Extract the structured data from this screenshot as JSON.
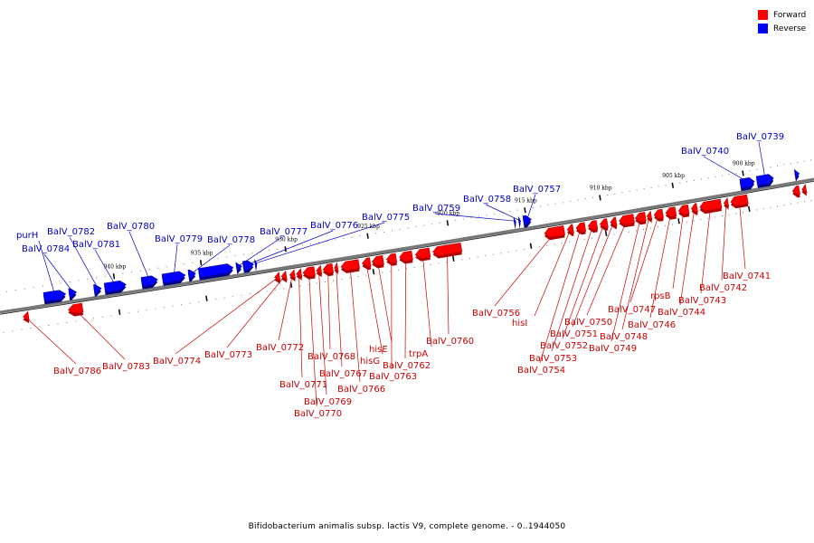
{
  "caption": "Bifidobacterium animalis subsp. lactis V9, complete genome. - 0..1944050",
  "legend": {
    "forward": {
      "label": "Forward",
      "color": "#ff0000"
    },
    "reverse": {
      "label": "Reverse",
      "color": "#0000ff"
    }
  },
  "colors": {
    "forward": "#ff0000",
    "forward_dark": "#b00000",
    "forward_text": "#cc0000",
    "reverse": "#0000ff",
    "reverse_dark": "#00008c",
    "reverse_text": "#0000cc",
    "backbone": "#777777"
  },
  "ticks": [
    {
      "kbp": 940,
      "label": "940 kbp"
    },
    {
      "kbp": 935,
      "label": "935 kbp"
    },
    {
      "kbp": 930,
      "label": "930 kbp"
    },
    {
      "kbp": 925,
      "label": "925 kbp"
    },
    {
      "kbp": 920,
      "label": "920 kbp"
    },
    {
      "kbp": 915,
      "label": "915 kbp"
    },
    {
      "kbp": 910,
      "label": "910 kbp"
    },
    {
      "kbp": 905,
      "label": "905 kbp"
    },
    {
      "kbp": 900,
      "label": "900 kbp"
    }
  ],
  "reverse_genes": [
    {
      "name": "purH",
      "start": 944.0,
      "end": 942.8
    },
    {
      "name": "BalV_0784",
      "start": 942.6,
      "end": 942.2
    },
    {
      "name": "BalV_0782",
      "start": 941.2,
      "end": 940.8
    },
    {
      "name": "BalV_0781",
      "start": 940.6,
      "end": 939.4
    },
    {
      "name": "BalV_0780",
      "start": 938.5,
      "end": 937.6
    },
    {
      "name": "BalV_0779",
      "start": 937.3,
      "end": 936.0
    },
    {
      "name": "BalV_0778",
      "start": 935.8,
      "end": 935.4
    },
    {
      "name": "",
      "start": 935.2,
      "end": 933.2
    },
    {
      "name": "BalV_0777",
      "start": 933.0,
      "end": 932.7
    },
    {
      "name": "BalV_0776",
      "start": 932.6,
      "end": 932.0
    },
    {
      "name": "BalV_0775",
      "start": 931.9,
      "end": 931.8
    },
    {
      "name": "BalV_0759",
      "start": 915.8,
      "end": 915.7
    },
    {
      "name": "BalV_0758",
      "start": 915.5,
      "end": 915.4
    },
    {
      "name": "BalV_0757",
      "start": 915.2,
      "end": 914.7
    },
    {
      "name": "BalV_0740",
      "start": 900.3,
      "end": 899.3
    },
    {
      "name": "BalV_0739",
      "start": 899.1,
      "end": 897.9
    },
    {
      "name": "",
      "start": 896.3,
      "end": 896.0
    }
  ],
  "forward_genes": [
    {
      "name": "BalV_0786",
      "start": 945.0,
      "end": 945.3
    },
    {
      "name": "BalV_0783",
      "start": 942.0,
      "end": 942.8
    },
    {
      "name": "BalV_0774",
      "start": 930.6,
      "end": 930.9
    },
    {
      "name": "BalV_0773",
      "start": 930.2,
      "end": 930.5
    },
    {
      "name": "BalV_0772",
      "start": 929.7,
      "end": 930.0
    },
    {
      "name": "BalV_0771",
      "start": 929.3,
      "end": 929.6
    },
    {
      "name": "BalV_0770",
      "start": 928.5,
      "end": 929.2
    },
    {
      "name": "BalV_0769",
      "start": 928.1,
      "end": 928.4
    },
    {
      "name": "BalV_0768",
      "start": 927.4,
      "end": 928.0
    },
    {
      "name": "BalV_0767",
      "start": 927.1,
      "end": 927.3
    },
    {
      "name": "BalV_0766",
      "start": 925.8,
      "end": 926.9
    },
    {
      "name": "hisG",
      "start": 925.1,
      "end": 925.6
    },
    {
      "name": "hisE",
      "start": 924.3,
      "end": 925.0
    },
    {
      "name": "BalV_0763",
      "start": 923.5,
      "end": 924.1
    },
    {
      "name": "BalV_0762",
      "start": 922.5,
      "end": 923.3
    },
    {
      "name": "trpA",
      "start": 921.4,
      "end": 922.3
    },
    {
      "name": "BalV_0760",
      "start": 919.4,
      "end": 921.2
    },
    {
      "name": "BalV_0756",
      "start": 912.7,
      "end": 914.0
    },
    {
      "name": "hisI",
      "start": 912.1,
      "end": 912.5
    },
    {
      "name": "BalV_0754",
      "start": 911.3,
      "end": 911.9
    },
    {
      "name": "BalV_0753",
      "start": 910.5,
      "end": 911.1
    },
    {
      "name": "BalV_0752",
      "start": 909.8,
      "end": 910.3
    },
    {
      "name": "BalV_0751",
      "start": 909.2,
      "end": 909.6
    },
    {
      "name": "BalV_0750",
      "start": 908.0,
      "end": 909.0
    },
    {
      "name": "BalV_0749",
      "start": 907.2,
      "end": 907.9
    },
    {
      "name": "BalV_0748",
      "start": 906.8,
      "end": 907.1
    },
    {
      "name": "BalV_0747",
      "start": 906.0,
      "end": 906.6
    },
    {
      "name": "BalV_0746",
      "start": 905.1,
      "end": 905.8
    },
    {
      "name": "rpsB",
      "start": 904.2,
      "end": 904.9
    },
    {
      "name": "BalV_0744",
      "start": 903.6,
      "end": 904.0
    },
    {
      "name": "BalV_0743",
      "start": 901.9,
      "end": 903.4
    },
    {
      "name": "BalV_0742",
      "start": 901.4,
      "end": 901.7
    },
    {
      "name": "BalV_0741",
      "start": 900.0,
      "end": 901.2
    },
    {
      "name": "",
      "start": 896.2,
      "end": 896.7
    },
    {
      "name": "",
      "start": 895.7,
      "end": 896.0
    }
  ]
}
